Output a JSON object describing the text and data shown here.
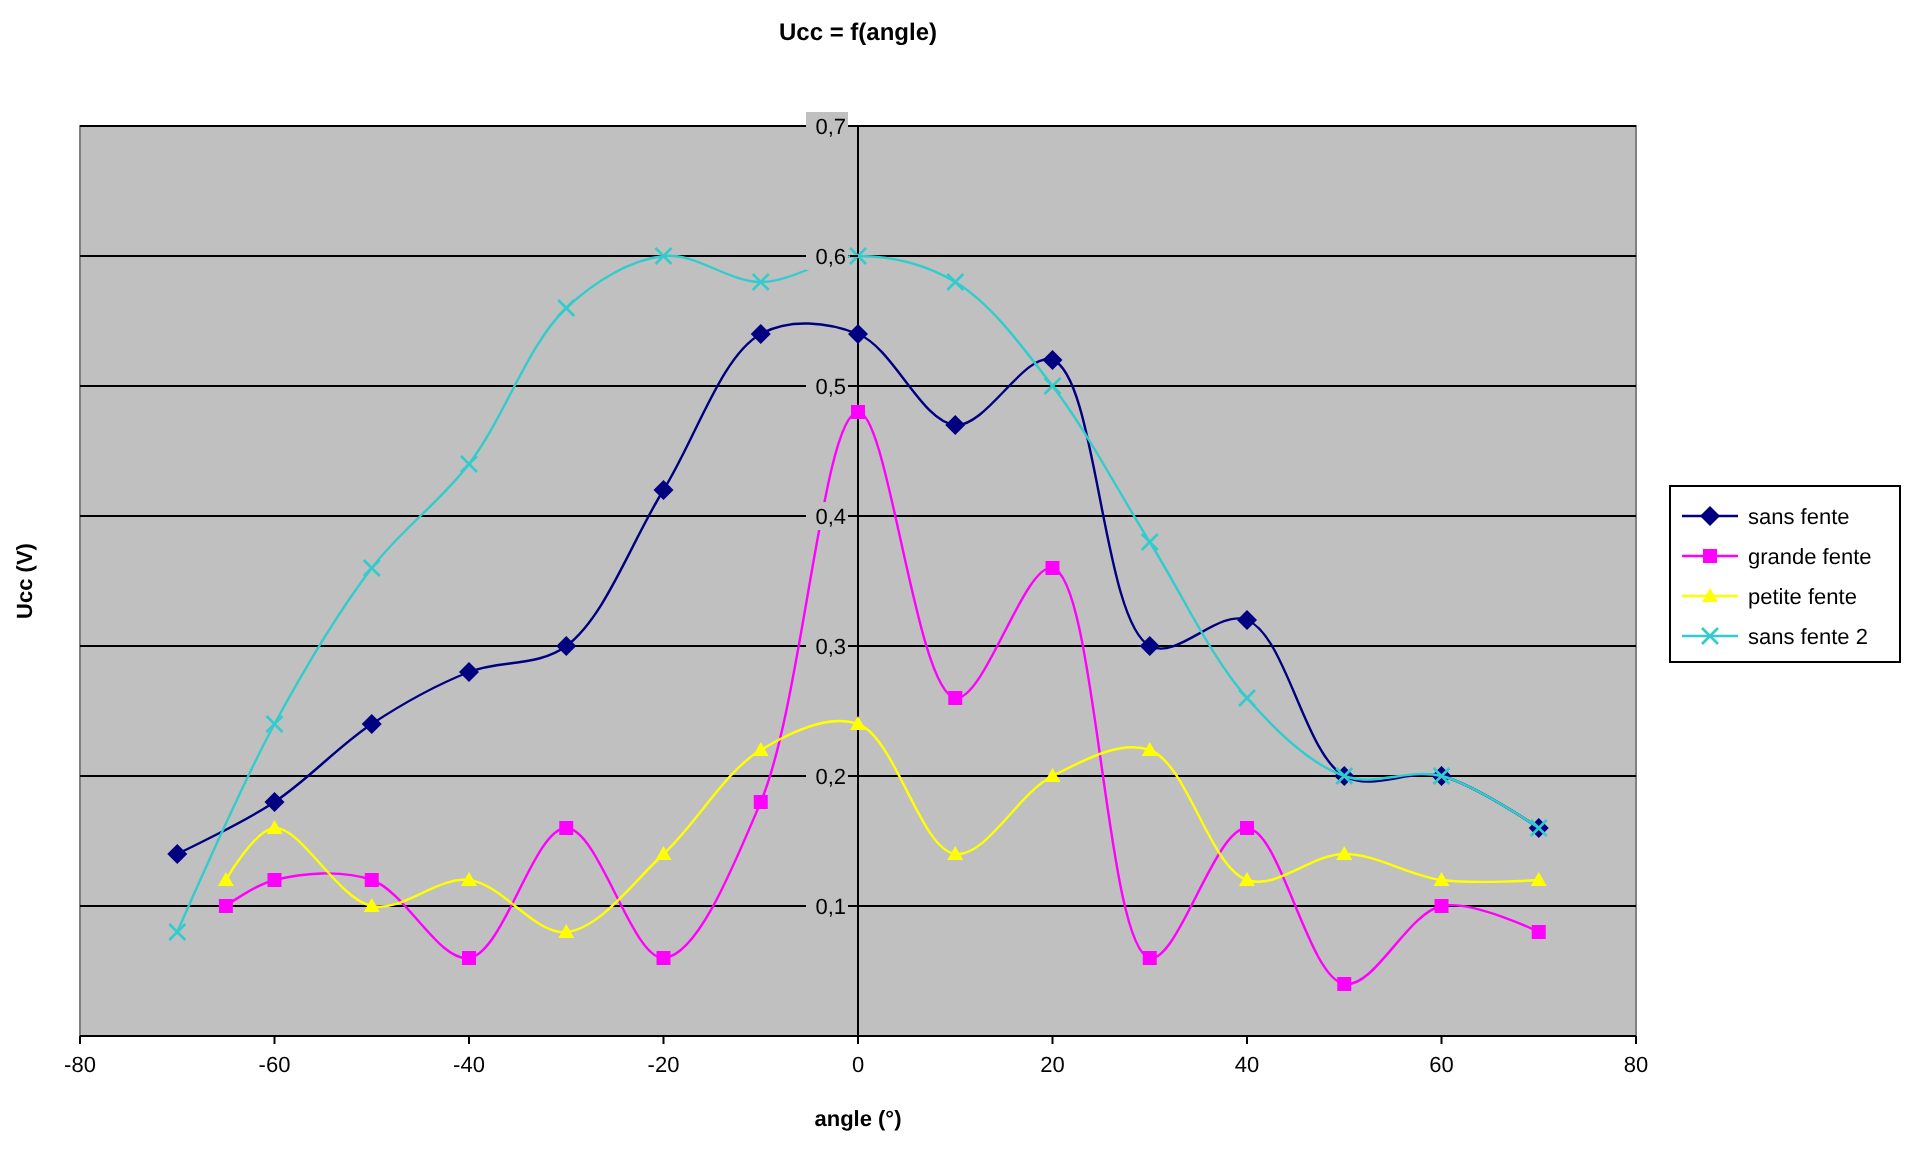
{
  "chart_data": {
    "type": "line",
    "title": "Ucc = f(angle)",
    "xlabel": "angle (°)",
    "ylabel": "Ucc (V)",
    "xlim": [
      -80,
      80
    ],
    "xticks": [
      -80,
      -60,
      -40,
      -20,
      0,
      20,
      40,
      60,
      80
    ],
    "ylim": [
      0,
      0.7
    ],
    "yticks": [
      {
        "value": 0.1,
        "label": "0,1"
      },
      {
        "value": 0.2,
        "label": "0,2"
      },
      {
        "value": 0.3,
        "label": "0,3"
      },
      {
        "value": 0.4,
        "label": "0,4"
      },
      {
        "value": 0.5,
        "label": "0,5"
      },
      {
        "value": 0.6,
        "label": "0,6"
      },
      {
        "value": 0.7,
        "label": "0,7"
      }
    ],
    "grid": "y",
    "legend": "right",
    "line_style": "solid",
    "series": [
      {
        "name": "sans fente",
        "color": "#000080",
        "marker": "diamond",
        "x": [
          -70,
          -60,
          -50,
          -40,
          -30,
          -20,
          -10,
          0,
          10,
          20,
          30,
          40,
          50,
          60,
          70
        ],
        "values": [
          0.14,
          0.18,
          0.24,
          0.28,
          0.3,
          0.42,
          0.54,
          0.54,
          0.47,
          0.52,
          0.3,
          0.32,
          0.2,
          0.2,
          0.16
        ]
      },
      {
        "name": "grande fente",
        "color": "#ff00ff",
        "marker": "square",
        "x": [
          -65,
          -60,
          -50,
          -40,
          -30,
          -20,
          -10,
          0,
          10,
          20,
          30,
          40,
          50,
          60,
          70
        ],
        "values": [
          0.1,
          0.12,
          0.12,
          0.06,
          0.16,
          0.06,
          0.18,
          0.48,
          0.26,
          0.36,
          0.06,
          0.16,
          0.04,
          0.1,
          0.08
        ]
      },
      {
        "name": "petite fente",
        "color": "#ffff00",
        "marker": "triangle",
        "x": [
          -65,
          -60,
          -50,
          -40,
          -30,
          -20,
          -10,
          0,
          10,
          20,
          30,
          40,
          50,
          60,
          70
        ],
        "values": [
          0.12,
          0.16,
          0.1,
          0.12,
          0.08,
          0.14,
          0.22,
          0.24,
          0.14,
          0.2,
          0.22,
          0.12,
          0.14,
          0.12,
          0.12
        ]
      },
      {
        "name": "sans fente 2",
        "color": "#33cccc",
        "marker": "cross",
        "x": [
          -70,
          -60,
          -50,
          -40,
          -30,
          -20,
          -10,
          0,
          10,
          20,
          30,
          40,
          50,
          60,
          70
        ],
        "values": [
          0.08,
          0.24,
          0.36,
          0.44,
          0.56,
          0.6,
          0.58,
          0.6,
          0.58,
          0.5,
          0.38,
          0.26,
          0.2,
          0.2,
          0.16
        ]
      }
    ]
  }
}
